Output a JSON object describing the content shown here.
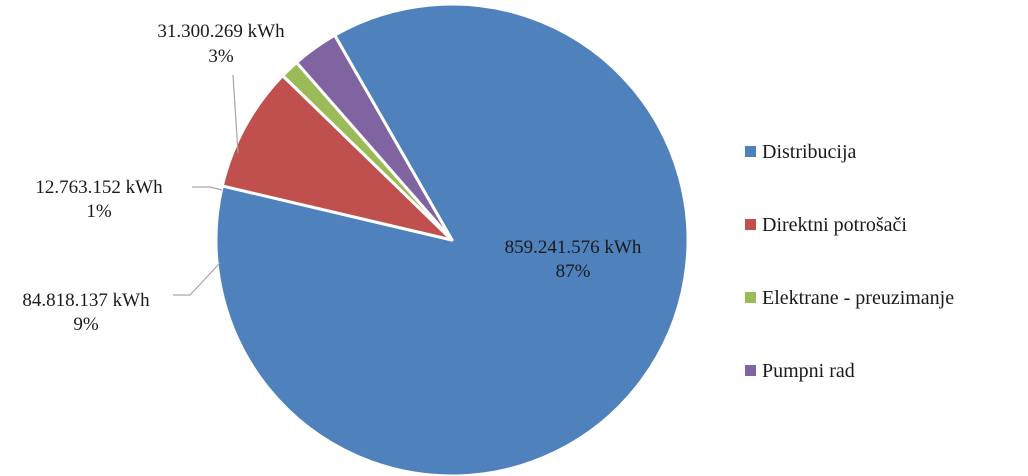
{
  "chart_data": {
    "type": "pie",
    "title": "",
    "slices": [
      {
        "name": "Distribucija",
        "value": 859241576,
        "value_label": "859.241.576  kWh",
        "percent_label": "87%",
        "color": "#4F81BD"
      },
      {
        "name": "Direktni potrošači",
        "value": 84818137,
        "value_label": "84.818.137 kWh",
        "percent_label": "9%",
        "color": "#C0504D"
      },
      {
        "name": "Elektrane - preuzimanje",
        "value": 12763152,
        "value_label": "12.763.152  kWh",
        "percent_label": "1%",
        "color": "#9BBB59"
      },
      {
        "name": "Pumpni rad",
        "value": 31300269,
        "value_label": "31.300.269  kWh",
        "percent_label": "3%",
        "color": "#8064A2"
      }
    ],
    "legend_position": "right"
  }
}
